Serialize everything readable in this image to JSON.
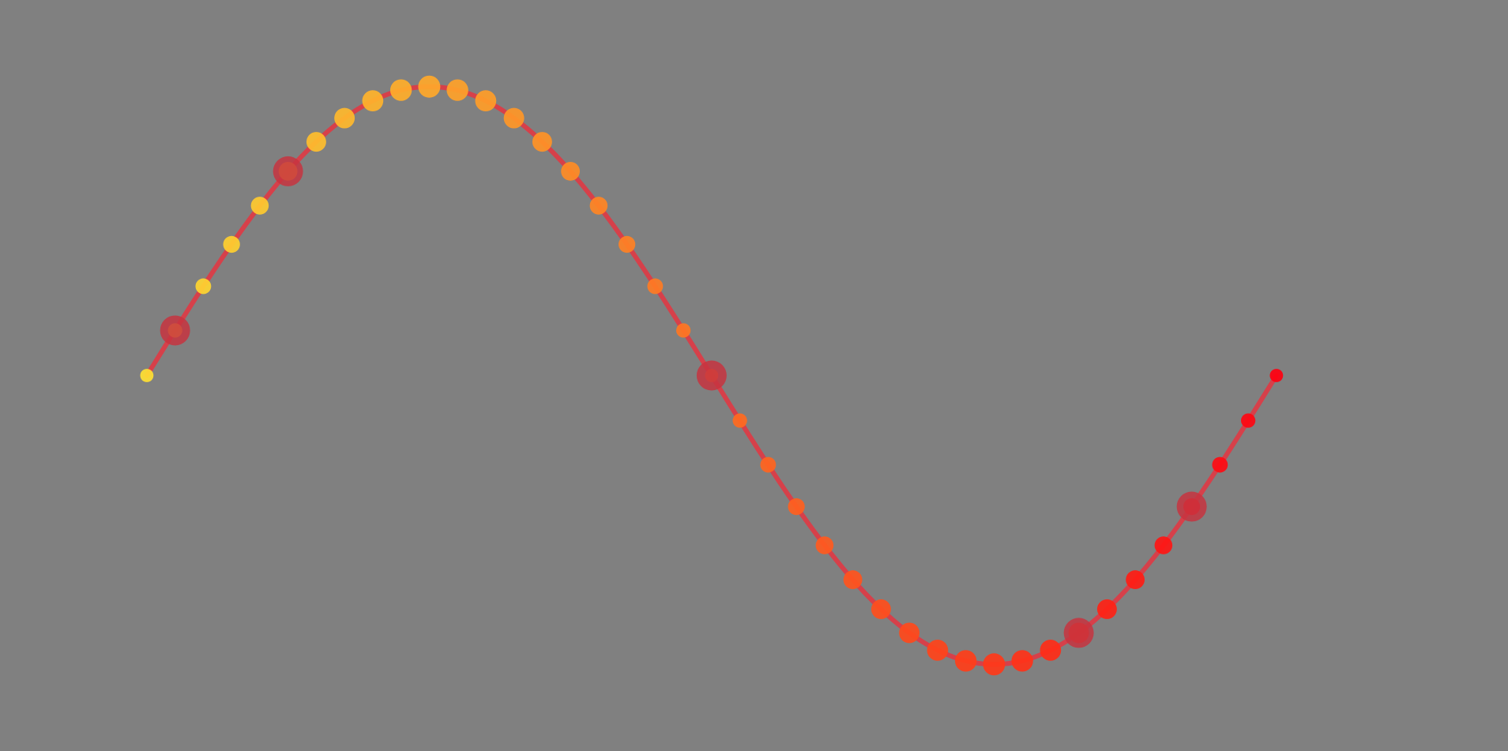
{
  "colors": {
    "background": "#808080",
    "curve": "#d6404a",
    "point_start": "#ffe032",
    "point_end": "#ff0010",
    "marker": "#c73440"
  },
  "chart_data": {
    "type": "line",
    "title": "",
    "xlabel": "",
    "ylabel": "",
    "grid": false,
    "legend": "none",
    "xlim": [
      -2.6,
      24.1
    ],
    "ylim": [
      -1.3,
      1.3
    ],
    "curve": {
      "function": "sine",
      "x_start": 0,
      "x_end": 20.0,
      "samples": 300
    },
    "points": {
      "x": [
        0,
        0.5,
        1,
        1.5,
        2,
        2.5,
        3,
        3.5,
        4,
        4.5,
        5,
        5.5,
        6,
        6.5,
        7,
        7.5,
        8,
        8.5,
        9,
        9.5,
        10,
        10.5,
        11,
        11.5,
        12,
        12.5,
        13,
        13.5,
        14,
        14.5,
        15,
        15.5,
        16,
        16.5,
        17,
        17.5,
        18,
        18.5,
        19,
        19.5,
        20
      ],
      "y": [
        0,
        0.156,
        0.309,
        0.454,
        0.588,
        0.707,
        0.809,
        0.891,
        0.951,
        0.988,
        1,
        0.988,
        0.951,
        0.891,
        0.809,
        0.707,
        0.588,
        0.454,
        0.309,
        0.156,
        0,
        -0.156,
        -0.309,
        -0.454,
        -0.588,
        -0.707,
        -0.809,
        -0.891,
        -0.951,
        -0.988,
        -1,
        -0.988,
        -0.951,
        -0.891,
        -0.809,
        -0.707,
        -0.588,
        -0.454,
        -0.309,
        -0.156,
        0
      ],
      "size": [
        0.3,
        0.39,
        0.49,
        0.58,
        0.66,
        0.74,
        0.81,
        0.87,
        0.92,
        0.96,
        1,
        0.96,
        0.92,
        0.87,
        0.81,
        0.74,
        0.66,
        0.58,
        0.49,
        0.39,
        0.3,
        0.39,
        0.49,
        0.58,
        0.66,
        0.74,
        0.81,
        0.87,
        0.92,
        0.96,
        1,
        0.96,
        0.92,
        0.87,
        0.81,
        0.74,
        0.66,
        0.58,
        0.49,
        0.39,
        0.3
      ]
    },
    "markers": {
      "x": [
        0.5,
        2.5,
        10,
        16.5,
        18.5
      ],
      "y": [
        0.156,
        0.707,
        0,
        -0.891,
        -0.454
      ]
    }
  }
}
